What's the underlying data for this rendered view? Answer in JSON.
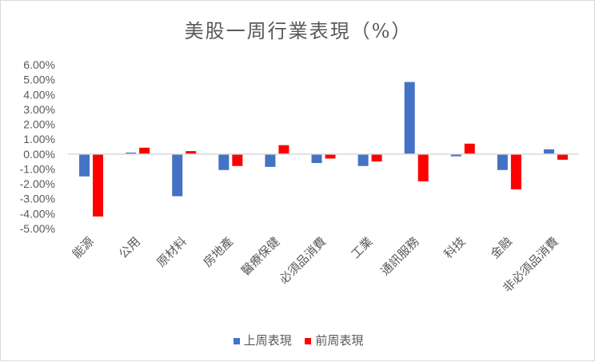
{
  "chart_data": {
    "type": "bar",
    "title": "美股一周行業表現（%）",
    "categories": [
      "能源",
      "公用",
      "原材料",
      "房地產",
      "醫療保健",
      "必須品消費",
      "工業",
      "通訊服務",
      "科技",
      "金融",
      "非必須品消費"
    ],
    "series": [
      {
        "name": "上周表現",
        "color": "#4472C4",
        "values": [
          -1.5,
          0.1,
          -2.83,
          -1.07,
          -0.86,
          -0.6,
          -0.8,
          4.84,
          -0.15,
          -1.07,
          0.32
        ]
      },
      {
        "name": "前周表現",
        "color": "#FF0000",
        "values": [
          -4.19,
          0.43,
          0.2,
          -0.8,
          0.6,
          -0.3,
          -0.5,
          -1.83,
          0.7,
          -2.37,
          -0.38
        ]
      }
    ],
    "ylim": [
      -5,
      6
    ],
    "yticks": [
      "6.00%",
      "5.00%",
      "4.00%",
      "3.00%",
      "2.00%",
      "1.00%",
      "0.00%",
      "-1.00%",
      "-2.00%",
      "-3.00%",
      "-4.00%",
      "-5.00%"
    ],
    "grid": false,
    "legend": "bottom"
  }
}
